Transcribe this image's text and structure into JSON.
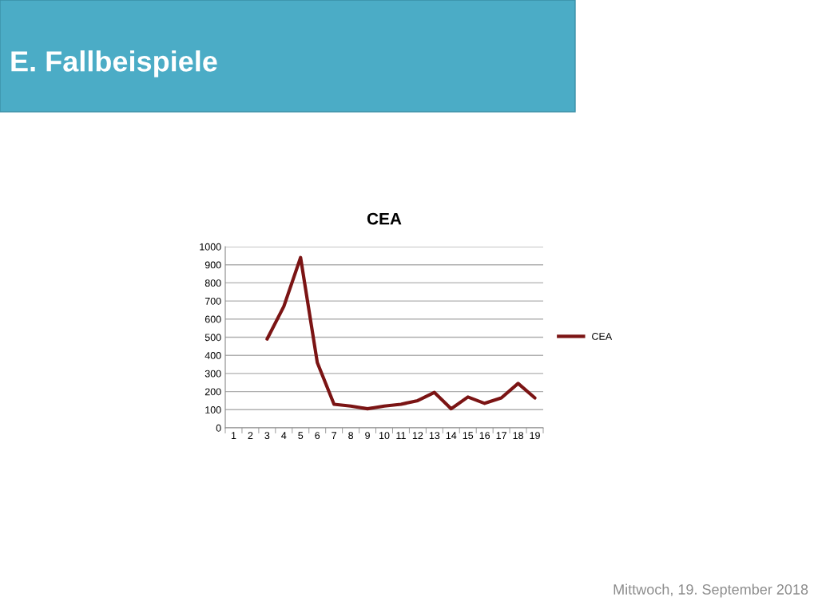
{
  "chart_data": {
    "type": "line",
    "title": "CEA",
    "categories": [
      "1",
      "2",
      "3",
      "4",
      "5",
      "6",
      "7",
      "8",
      "9",
      "10",
      "11",
      "12",
      "13",
      "14",
      "15",
      "16",
      "17",
      "18",
      "19"
    ],
    "series": [
      {
        "name": "CEA",
        "color": "#7b1414",
        "values": [
          null,
          null,
          490,
          670,
          940,
          360,
          130,
          120,
          105,
          120,
          130,
          150,
          195,
          105,
          170,
          135,
          165,
          245,
          165
        ]
      }
    ],
    "ylim": [
      0,
      1000
    ],
    "yticks": [
      0,
      100,
      200,
      300,
      400,
      500,
      600,
      700,
      800,
      900,
      1000
    ],
    "grid": "y",
    "legend": "right",
    "marker": "none",
    "line_style": "solid",
    "annotations": [
      "E. Fallbeispiele",
      "Mittwoch, 19. September 2018"
    ]
  }
}
